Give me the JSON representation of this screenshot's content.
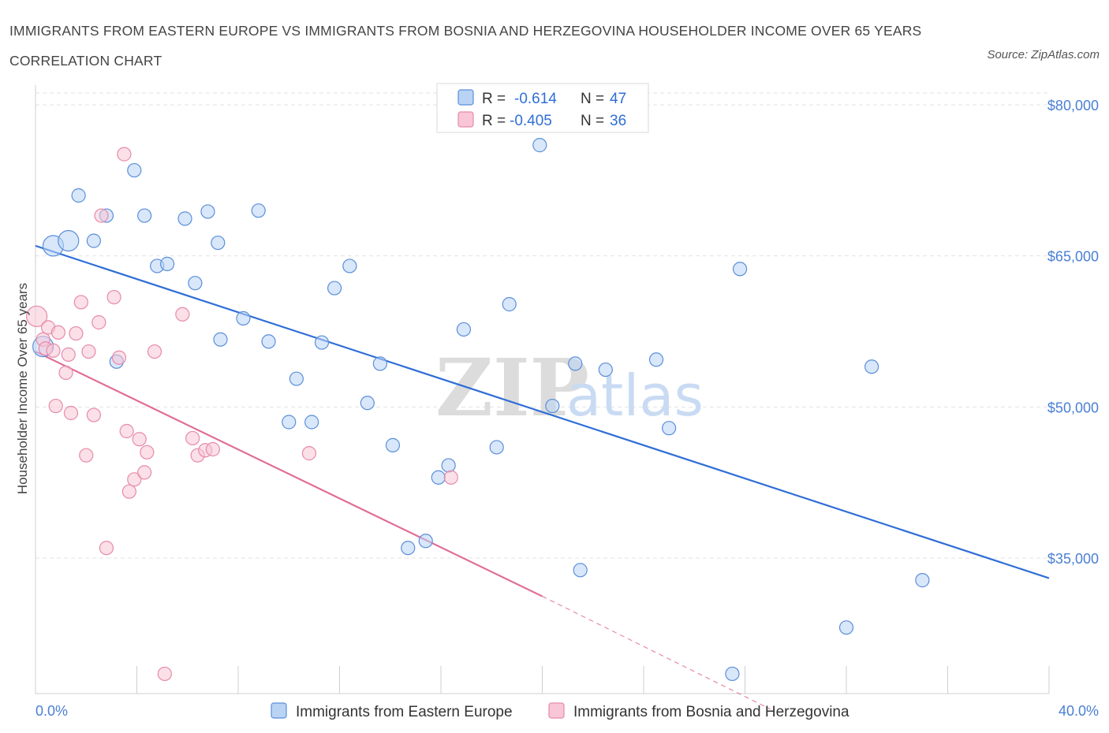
{
  "title": "IMMIGRANTS FROM EASTERN EUROPE VS IMMIGRANTS FROM BOSNIA AND HERZEGOVINA HOUSEHOLDER INCOME OVER 65 YEARS CORRELATION CHART",
  "source": "Source: ZipAtlas.com",
  "watermark": {
    "part1": "ZIP",
    "part2": "atlas"
  },
  "colors": {
    "blue": "#2f6ed6",
    "blue_fill": "#b9d3f5",
    "blue_stroke": "#5a8fd9",
    "pink": "#e16b96",
    "pink_fill": "#f8c6d6",
    "pink_stroke": "#e68aab",
    "tick": "#4a7fd4",
    "grid": "#e3e3e3"
  },
  "legend": {
    "rows": [
      {
        "r_label": "R = ",
        "r_value": "-0.614",
        "n_label": "N = ",
        "n_value": "47"
      },
      {
        "r_label": "R = ",
        "r_value": "-0.405",
        "n_label": "N = ",
        "n_value": "36"
      }
    ]
  },
  "chart_data": {
    "type": "scatter",
    "title": "IMMIGRANTS FROM EASTERN EUROPE VS IMMIGRANTS FROM BOSNIA AND HERZEGOVINA HOUSEHOLDER INCOME OVER 65 YEARS CORRELATION CHART",
    "xlabel": "",
    "ylabel": "Householder Income Over 65 years",
    "xlim": [
      0,
      40
    ],
    "ylim": [
      20000,
      81000
    ],
    "x_tick_labels": [
      "0.0%",
      "40.0%"
    ],
    "y_ticks": [
      35000,
      50000,
      65000,
      80000
    ],
    "y_tick_labels": [
      "$35,000",
      "$50,000",
      "$65,000",
      "$80,000"
    ],
    "grid": true,
    "series": [
      {
        "name": "Immigrants from Eastern Europe",
        "color": "blue",
        "stats": {
          "R": -0.614,
          "N": 47
        },
        "trend": {
          "x0": 0,
          "y0": 66000,
          "x1": 40,
          "y1": 33000,
          "dashed_to": null
        },
        "points": [
          {
            "x": 0.3,
            "y": 56000,
            "big": true
          },
          {
            "x": 0.7,
            "y": 66000,
            "big": true
          },
          {
            "x": 1.3,
            "y": 66500,
            "big": true
          },
          {
            "x": 1.7,
            "y": 71000
          },
          {
            "x": 2.3,
            "y": 66500
          },
          {
            "x": 2.8,
            "y": 69000
          },
          {
            "x": 3.2,
            "y": 54500
          },
          {
            "x": 3.9,
            "y": 73500
          },
          {
            "x": 4.3,
            "y": 69000
          },
          {
            "x": 4.8,
            "y": 64000
          },
          {
            "x": 5.2,
            "y": 64200
          },
          {
            "x": 5.9,
            "y": 68700
          },
          {
            "x": 6.3,
            "y": 62300
          },
          {
            "x": 6.8,
            "y": 69400
          },
          {
            "x": 7.2,
            "y": 66300
          },
          {
            "x": 7.3,
            "y": 56700
          },
          {
            "x": 8.2,
            "y": 58800
          },
          {
            "x": 8.8,
            "y": 69500
          },
          {
            "x": 9.2,
            "y": 56500
          },
          {
            "x": 10.0,
            "y": 48500
          },
          {
            "x": 10.3,
            "y": 52800
          },
          {
            "x": 10.9,
            "y": 48500
          },
          {
            "x": 11.3,
            "y": 56400
          },
          {
            "x": 11.8,
            "y": 61800
          },
          {
            "x": 12.4,
            "y": 64000
          },
          {
            "x": 13.1,
            "y": 50400
          },
          {
            "x": 13.6,
            "y": 54300
          },
          {
            "x": 14.1,
            "y": 46200
          },
          {
            "x": 14.7,
            "y": 36000
          },
          {
            "x": 15.4,
            "y": 36700
          },
          {
            "x": 15.9,
            "y": 43000
          },
          {
            "x": 16.3,
            "y": 44200
          },
          {
            "x": 16.9,
            "y": 57700
          },
          {
            "x": 18.2,
            "y": 46000
          },
          {
            "x": 18.7,
            "y": 60200
          },
          {
            "x": 19.9,
            "y": 76000
          },
          {
            "x": 20.4,
            "y": 50100
          },
          {
            "x": 21.3,
            "y": 54300
          },
          {
            "x": 21.5,
            "y": 33800
          },
          {
            "x": 22.5,
            "y": 53700
          },
          {
            "x": 24.5,
            "y": 54700
          },
          {
            "x": 25.0,
            "y": 47900
          },
          {
            "x": 27.5,
            "y": 23500
          },
          {
            "x": 27.8,
            "y": 63700
          },
          {
            "x": 32.0,
            "y": 28100
          },
          {
            "x": 33.0,
            "y": 54000
          },
          {
            "x": 35.0,
            "y": 32800
          }
        ]
      },
      {
        "name": "Immigrants from Bosnia and Herzegovina",
        "color": "pink",
        "stats": {
          "R": -0.405,
          "N": 36
        },
        "trend": {
          "x0": 0,
          "y0": 55500,
          "x1": 20,
          "y1": 31200,
          "dashed_to": {
            "x": 29,
            "y": 20000
          }
        },
        "points": [
          {
            "x": 0.05,
            "y": 59000,
            "big": true
          },
          {
            "x": 0.3,
            "y": 56700
          },
          {
            "x": 0.4,
            "y": 55800
          },
          {
            "x": 0.5,
            "y": 57900
          },
          {
            "x": 0.7,
            "y": 55600
          },
          {
            "x": 0.8,
            "y": 50100
          },
          {
            "x": 0.9,
            "y": 57400
          },
          {
            "x": 1.2,
            "y": 53400
          },
          {
            "x": 1.3,
            "y": 55200
          },
          {
            "x": 1.4,
            "y": 49400
          },
          {
            "x": 1.6,
            "y": 57300
          },
          {
            "x": 1.8,
            "y": 60400
          },
          {
            "x": 2.0,
            "y": 45200
          },
          {
            "x": 2.1,
            "y": 55500
          },
          {
            "x": 2.3,
            "y": 49200
          },
          {
            "x": 2.5,
            "y": 58400
          },
          {
            "x": 2.6,
            "y": 69000
          },
          {
            "x": 2.8,
            "y": 36000
          },
          {
            "x": 3.1,
            "y": 60900
          },
          {
            "x": 3.3,
            "y": 54900
          },
          {
            "x": 3.5,
            "y": 75100
          },
          {
            "x": 3.6,
            "y": 47600
          },
          {
            "x": 3.7,
            "y": 41600
          },
          {
            "x": 3.9,
            "y": 42800
          },
          {
            "x": 4.1,
            "y": 46800
          },
          {
            "x": 4.3,
            "y": 43500
          },
          {
            "x": 4.4,
            "y": 45500
          },
          {
            "x": 4.7,
            "y": 55500
          },
          {
            "x": 5.1,
            "y": 23500
          },
          {
            "x": 5.8,
            "y": 59200
          },
          {
            "x": 6.2,
            "y": 46900
          },
          {
            "x": 6.4,
            "y": 45200
          },
          {
            "x": 6.7,
            "y": 45700
          },
          {
            "x": 7.0,
            "y": 45800
          },
          {
            "x": 10.8,
            "y": 45400
          },
          {
            "x": 16.4,
            "y": 43000
          }
        ]
      }
    ]
  },
  "bottom_legend": [
    {
      "label": "Immigrants from Eastern Europe"
    },
    {
      "label": "Immigrants from Bosnia and Herzegovina"
    }
  ]
}
